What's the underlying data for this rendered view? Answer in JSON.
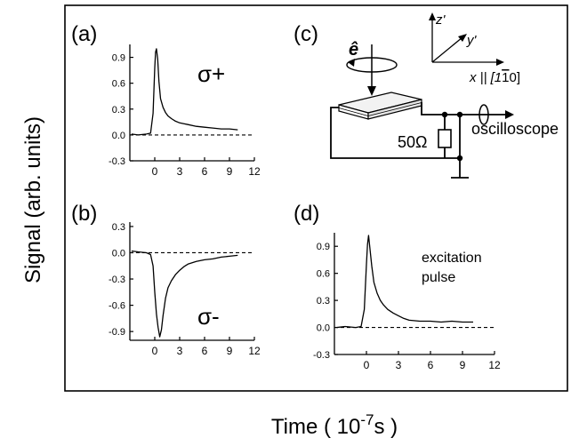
{
  "figure": {
    "ylabel": "Signal (arb. units)",
    "xlabel_prefix": "Time ( 10",
    "xlabel_exp": "-7",
    "xlabel_suffix": "s )"
  },
  "panels": {
    "a": {
      "tag": "(a)",
      "annotation": "σ+"
    },
    "b": {
      "tag": "(b)",
      "annotation": "σ-"
    },
    "c": {
      "tag": "(c)",
      "e_label": "ê",
      "z_label": "z'",
      "y_label": "y'",
      "x_label": "x || [1",
      "x_label_bar": "1",
      "x_label_end": "0]",
      "resistor_label": "50Ω",
      "output_label": "oscilloscope"
    },
    "d": {
      "tag": "(d)",
      "annotation_line1": "excitation",
      "annotation_line2": "pulse"
    }
  },
  "chart_data": [
    {
      "panel": "a",
      "type": "line",
      "title": "",
      "xlabel": "",
      "ylabel": "",
      "xlim": [
        -3,
        12
      ],
      "ylim": [
        -0.3,
        1.05
      ],
      "xticks": [
        0,
        3,
        6,
        9,
        12
      ],
      "yticks": [
        -0.3,
        0.0,
        0.3,
        0.6,
        0.9
      ],
      "ytick_labels": [
        "-0.3",
        "0.0",
        "0.3",
        "0.6",
        "0.9"
      ],
      "baseline": 0.0,
      "series": [
        {
          "x": [
            -2.8,
            -2.0,
            -1.0,
            -0.5,
            -0.2,
            0.0,
            0.1,
            0.2,
            0.35,
            0.5,
            0.7,
            1.0,
            1.3,
            1.6,
            2.0,
            2.5,
            3.0,
            3.5,
            4.0,
            5.0,
            6.0,
            7.0,
            8.0,
            9.0,
            10.0
          ],
          "y": [
            0.01,
            0.0,
            0.01,
            0.02,
            0.25,
            0.78,
            0.96,
            1.0,
            0.88,
            0.62,
            0.42,
            0.32,
            0.26,
            0.22,
            0.19,
            0.16,
            0.14,
            0.13,
            0.12,
            0.1,
            0.09,
            0.08,
            0.07,
            0.07,
            0.06
          ]
        }
      ]
    },
    {
      "panel": "b",
      "type": "line",
      "title": "",
      "xlabel": "",
      "ylabel": "",
      "xlim": [
        -3,
        12
      ],
      "ylim": [
        -1.0,
        0.35
      ],
      "xticks": [
        0,
        3,
        6,
        9,
        12
      ],
      "yticks": [
        -0.9,
        -0.6,
        -0.3,
        0.0,
        0.3
      ],
      "ytick_labels": [
        "-0.9",
        "-0.6",
        "-0.3",
        "0.0",
        "0.3"
      ],
      "baseline": 0.0,
      "series": [
        {
          "x": [
            -2.8,
            -2.0,
            -1.0,
            -0.5,
            -0.2,
            0.0,
            0.2,
            0.4,
            0.6,
            0.8,
            1.0,
            1.3,
            1.6,
            2.0,
            2.5,
            3.0,
            3.5,
            4.0,
            5.0,
            6.0,
            7.0,
            8.0,
            9.0,
            10.0
          ],
          "y": [
            0.02,
            0.01,
            0.0,
            -0.02,
            -0.15,
            -0.45,
            -0.7,
            -0.85,
            -0.96,
            -0.88,
            -0.72,
            -0.52,
            -0.4,
            -0.32,
            -0.25,
            -0.2,
            -0.16,
            -0.13,
            -0.1,
            -0.08,
            -0.07,
            -0.05,
            -0.04,
            -0.03
          ]
        }
      ]
    },
    {
      "panel": "d",
      "type": "line",
      "title": "",
      "xlabel": "",
      "ylabel": "",
      "xlim": [
        -3,
        12
      ],
      "ylim": [
        -0.3,
        1.05
      ],
      "xticks": [
        0,
        3,
        6,
        9,
        12
      ],
      "yticks": [
        -0.3,
        0.0,
        0.3,
        0.6,
        0.9
      ],
      "ytick_labels": [
        "-0.3",
        "0.0",
        "0.3",
        "0.6",
        "0.9"
      ],
      "baseline": 0.0,
      "series": [
        {
          "x": [
            -2.8,
            -2.0,
            -1.0,
            -0.5,
            -0.2,
            0.0,
            0.1,
            0.2,
            0.35,
            0.5,
            0.7,
            1.0,
            1.3,
            1.6,
            2.0,
            2.5,
            3.0,
            3.5,
            4.0,
            5.0,
            6.0,
            7.0,
            8.0,
            9.0,
            10.0
          ],
          "y": [
            0.0,
            0.01,
            0.0,
            0.01,
            0.2,
            0.7,
            0.92,
            1.02,
            0.85,
            0.68,
            0.5,
            0.38,
            0.3,
            0.25,
            0.2,
            0.16,
            0.13,
            0.1,
            0.08,
            0.07,
            0.07,
            0.06,
            0.07,
            0.06,
            0.06
          ]
        }
      ]
    }
  ]
}
